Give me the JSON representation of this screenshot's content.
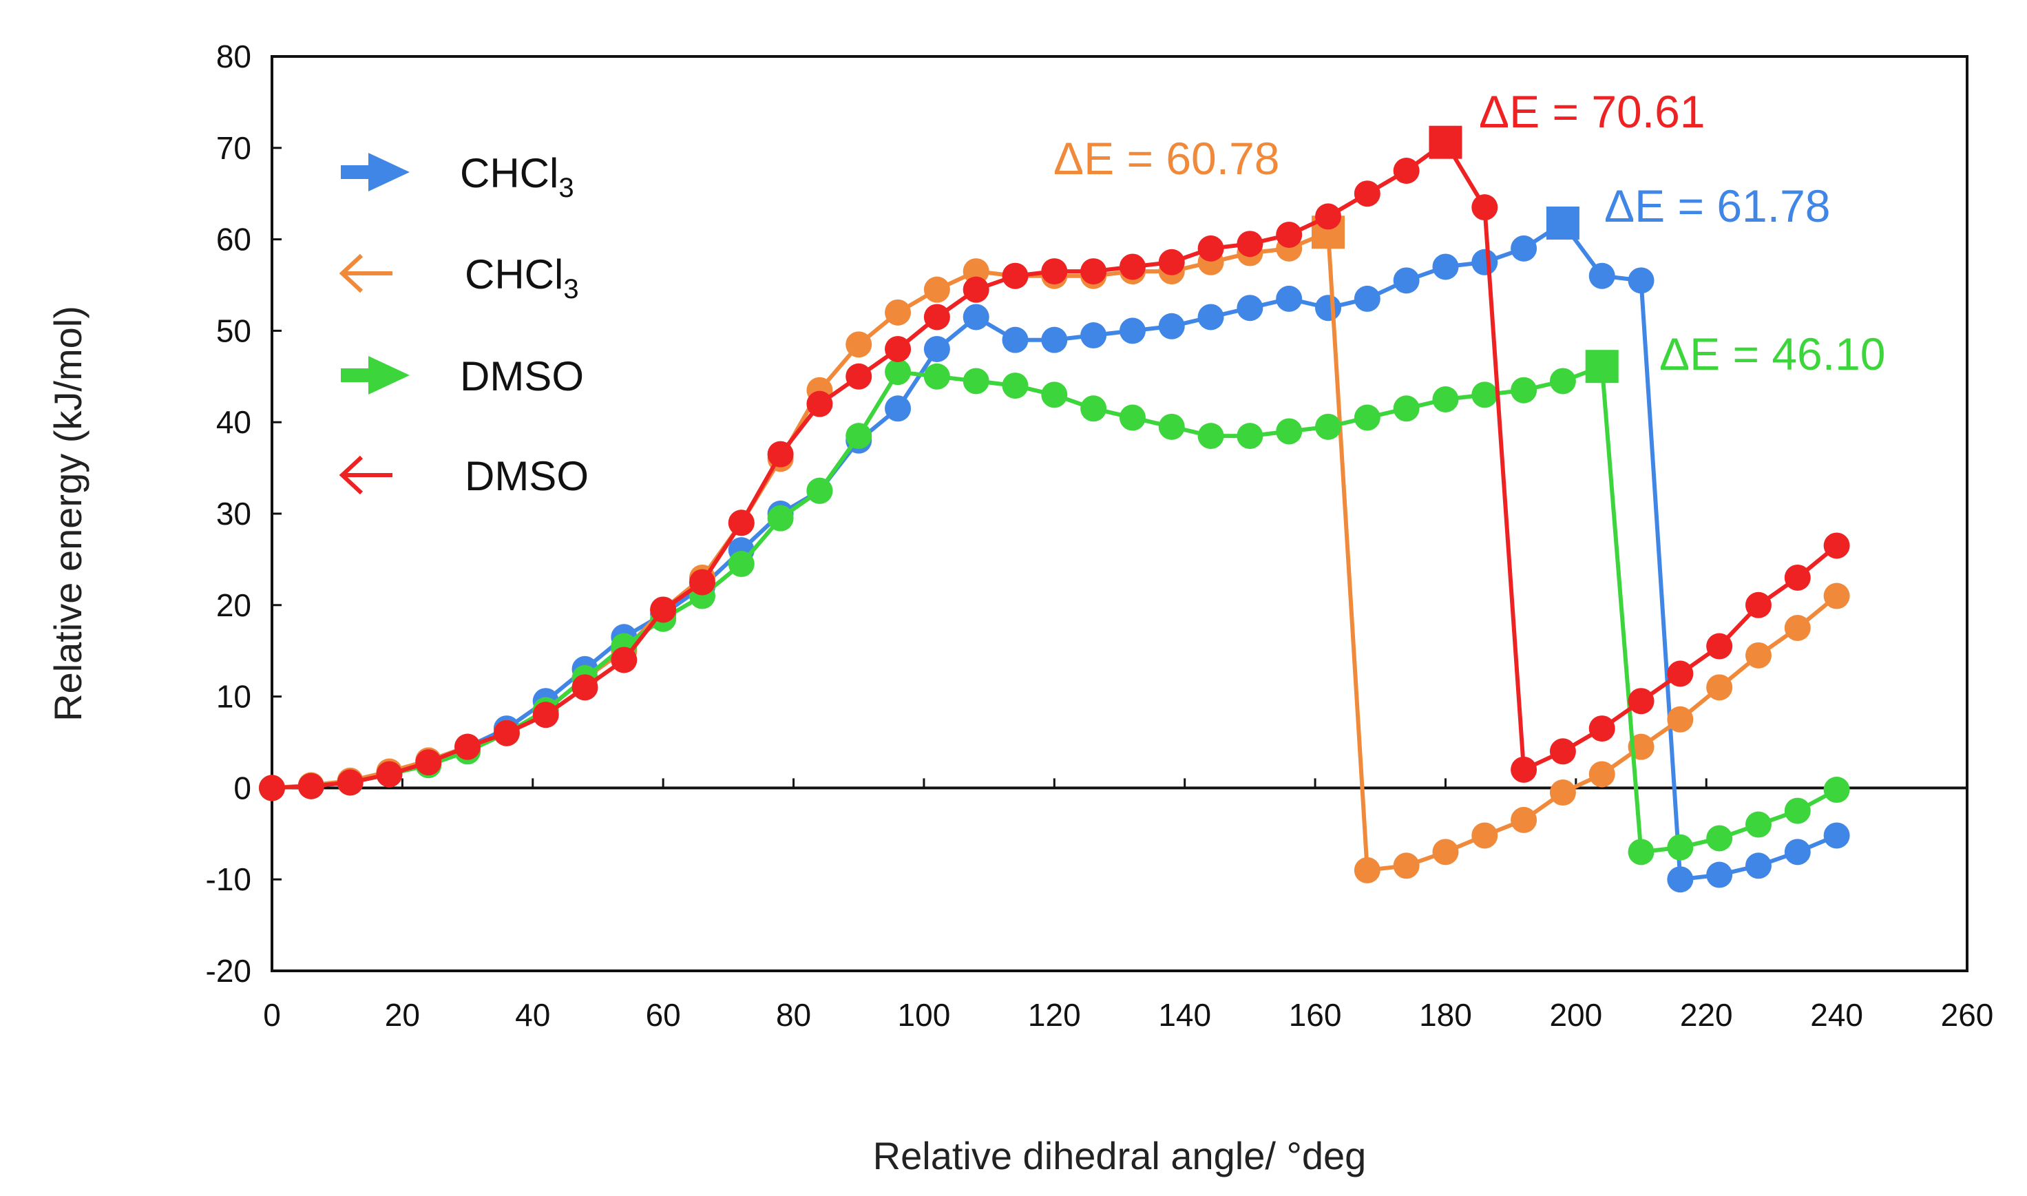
{
  "chart_data": {
    "type": "line",
    "title": "",
    "xlabel": "Relative dihedral angle/ °deg",
    "ylabel": "Relative energy (kJ/mol)",
    "xlim": [
      0,
      260
    ],
    "ylim": [
      -20,
      80
    ],
    "xticks": [
      0,
      20,
      40,
      60,
      80,
      100,
      120,
      140,
      160,
      180,
      200,
      220,
      240,
      260
    ],
    "yticks": [
      -20,
      -10,
      0,
      10,
      20,
      30,
      40,
      50,
      60,
      70,
      80
    ],
    "grid": false,
    "legend_position": "top-left",
    "series": [
      {
        "name": "CHCl3",
        "subscript": "3",
        "direction": "forward",
        "arrow": "➔",
        "color": "#3f86e6",
        "x": [
          0,
          6,
          12,
          18,
          24,
          30,
          36,
          42,
          48,
          54,
          60,
          66,
          72,
          78,
          84,
          90,
          96,
          102,
          108,
          114,
          120,
          126,
          132,
          138,
          144,
          150,
          156,
          162,
          168,
          174,
          180,
          186,
          192,
          198,
          204,
          210,
          216,
          222,
          228,
          234,
          240
        ],
        "y": [
          0,
          0.2,
          0.6,
          1.5,
          3,
          4.5,
          6.5,
          9.5,
          13,
          16.5,
          19,
          22,
          26,
          30,
          32.5,
          38,
          41.5,
          48,
          51.5,
          49,
          49,
          49.5,
          50,
          50.5,
          51.5,
          52.5,
          53.5,
          52.5,
          53.5,
          55.5,
          57,
          57.5,
          59,
          61.78,
          56,
          55.5,
          -10,
          -9.5,
          -8.5,
          -7,
          -5.2
        ],
        "peak_x": 198,
        "annotation": "ΔE = 61.78"
      },
      {
        "name": "CHCl3",
        "subscript": "3",
        "direction": "reverse",
        "arrow": "←",
        "color": "#f08a3a",
        "x": [
          0,
          6,
          12,
          18,
          24,
          30,
          36,
          42,
          48,
          54,
          60,
          66,
          72,
          78,
          84,
          90,
          96,
          102,
          108,
          114,
          120,
          126,
          132,
          138,
          144,
          150,
          156,
          162,
          168,
          174,
          180,
          186,
          192,
          198,
          204,
          210,
          216,
          222,
          228,
          234,
          240
        ],
        "y": [
          0,
          0.3,
          0.8,
          1.8,
          3,
          4.5,
          6,
          8.5,
          12,
          15,
          19.5,
          23,
          29,
          36,
          43.5,
          48.5,
          52,
          54.5,
          56.5,
          56,
          56,
          56,
          56.5,
          56.5,
          57.5,
          58.5,
          59,
          60.78,
          -9,
          -8.5,
          -7,
          -5.2,
          -3.5,
          -0.5,
          1.5,
          4.5,
          7.5,
          11,
          14.5,
          17.5,
          21
        ],
        "peak_x": 162,
        "annotation": "ΔE = 60.78"
      },
      {
        "name": "DMSO",
        "subscript": "",
        "direction": "forward",
        "arrow": "➔",
        "color": "#3cd63c",
        "x": [
          0,
          6,
          12,
          18,
          24,
          30,
          36,
          42,
          48,
          54,
          60,
          66,
          72,
          78,
          84,
          90,
          96,
          102,
          108,
          114,
          120,
          126,
          132,
          138,
          144,
          150,
          156,
          162,
          168,
          174,
          180,
          186,
          192,
          198,
          204,
          210,
          216,
          222,
          228,
          234,
          240
        ],
        "y": [
          0,
          0.2,
          0.6,
          1.5,
          2.5,
          4,
          6,
          8.5,
          12,
          15.5,
          18.5,
          21,
          24.5,
          29.5,
          32.5,
          38.5,
          45.5,
          45,
          44.5,
          44,
          43,
          41.5,
          40.5,
          39.5,
          38.5,
          38.5,
          39,
          39.5,
          40.5,
          41.5,
          42.5,
          43,
          43.5,
          44.5,
          46.1,
          -7,
          -6.5,
          -5.5,
          -4,
          -2.5,
          -0.2
        ],
        "peak_x": 204,
        "annotation": "ΔE = 46.10"
      },
      {
        "name": "DMSO",
        "subscript": "",
        "direction": "reverse",
        "arrow": "←",
        "color": "#ee2222",
        "x": [
          0,
          6,
          12,
          18,
          24,
          30,
          36,
          42,
          48,
          54,
          60,
          66,
          72,
          78,
          84,
          90,
          96,
          102,
          108,
          114,
          120,
          126,
          132,
          138,
          144,
          150,
          156,
          162,
          168,
          174,
          180,
          186,
          192,
          198,
          204,
          210,
          216,
          222,
          228,
          234,
          240
        ],
        "y": [
          0,
          0.2,
          0.6,
          1.5,
          2.8,
          4.5,
          6,
          8,
          11,
          14,
          19.5,
          22.5,
          29,
          36.5,
          42,
          45,
          48,
          51.5,
          54.5,
          56,
          56.5,
          56.5,
          57,
          57.5,
          59,
          59.5,
          60.5,
          62.5,
          65,
          67.5,
          70.61,
          63.5,
          2,
          4,
          6.5,
          9.5,
          12.5,
          15.5,
          20,
          23,
          26.5
        ],
        "peak_x": 180,
        "annotation": "ΔE = 70.61"
      }
    ]
  }
}
